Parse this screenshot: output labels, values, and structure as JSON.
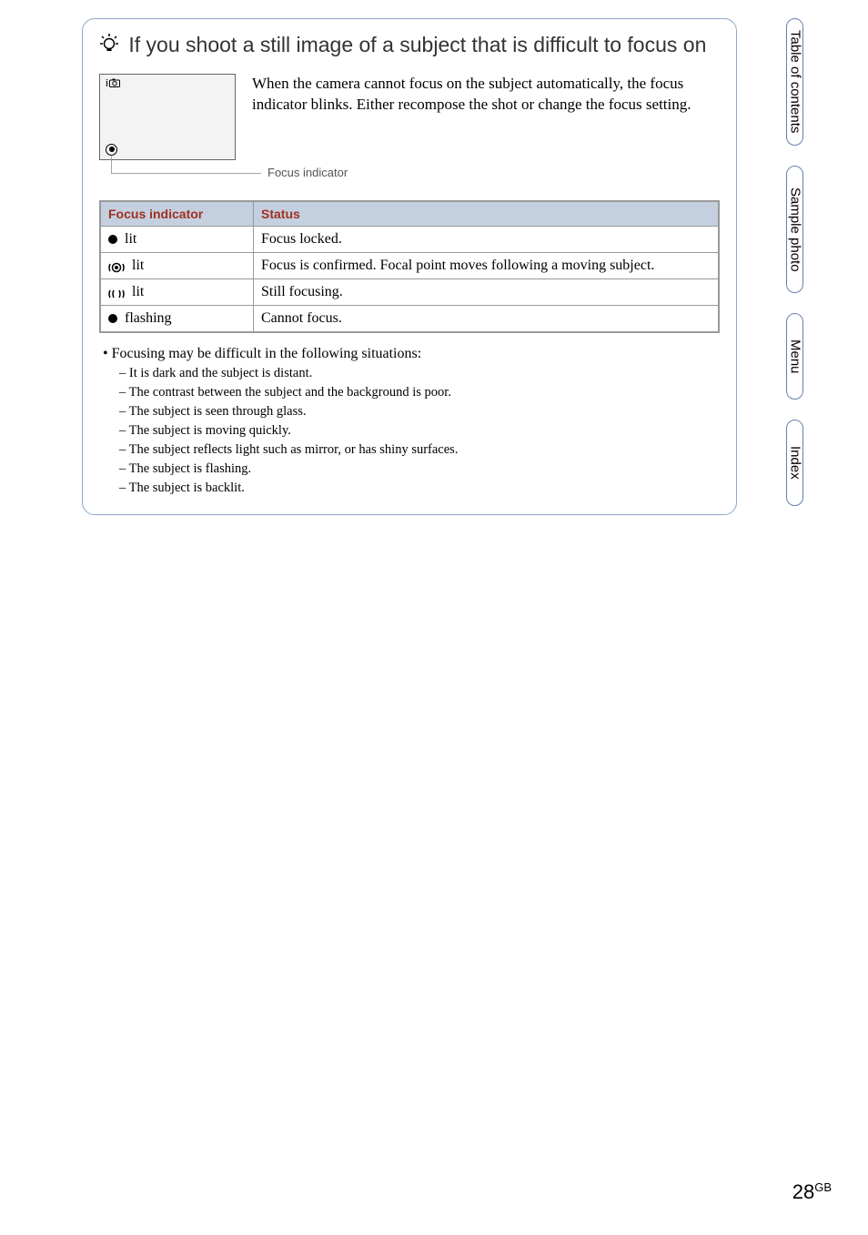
{
  "tip": {
    "title": "If you shoot a still image of a subject that is difficult to focus on",
    "body": "When the camera cannot focus on the subject automatically, the focus indicator blinks. Either recompose the shot or change the focus setting.",
    "viewfinder_mode": "i",
    "callout_label": "Focus indicator"
  },
  "table": {
    "headers": [
      "Focus indicator",
      "Status"
    ],
    "rows": [
      {
        "indType": "dot",
        "indText": "lit",
        "status": "Focus locked."
      },
      {
        "indType": "ringFilled",
        "indText": "lit",
        "status": "Focus is confirmed. Focal point moves following a moving subject."
      },
      {
        "indType": "ringEmpty",
        "indText": "lit",
        "status": "Still focusing."
      },
      {
        "indType": "dot",
        "indText": "flashing",
        "status": "Cannot focus."
      }
    ]
  },
  "notes": {
    "lead": "Focusing may be difficult in the following situations:",
    "items": [
      "It is dark and the subject is distant.",
      "The contrast between the subject and the background is poor.",
      "The subject is seen through glass.",
      "The subject is moving quickly.",
      "The subject reflects light such as mirror, or has shiny surfaces.",
      "The subject is flashing.",
      "The subject is backlit."
    ]
  },
  "tabs": [
    "Table of contents",
    "Sample photo",
    "Menu",
    "Index"
  ],
  "page": {
    "num": "28",
    "suffix": "GB"
  }
}
